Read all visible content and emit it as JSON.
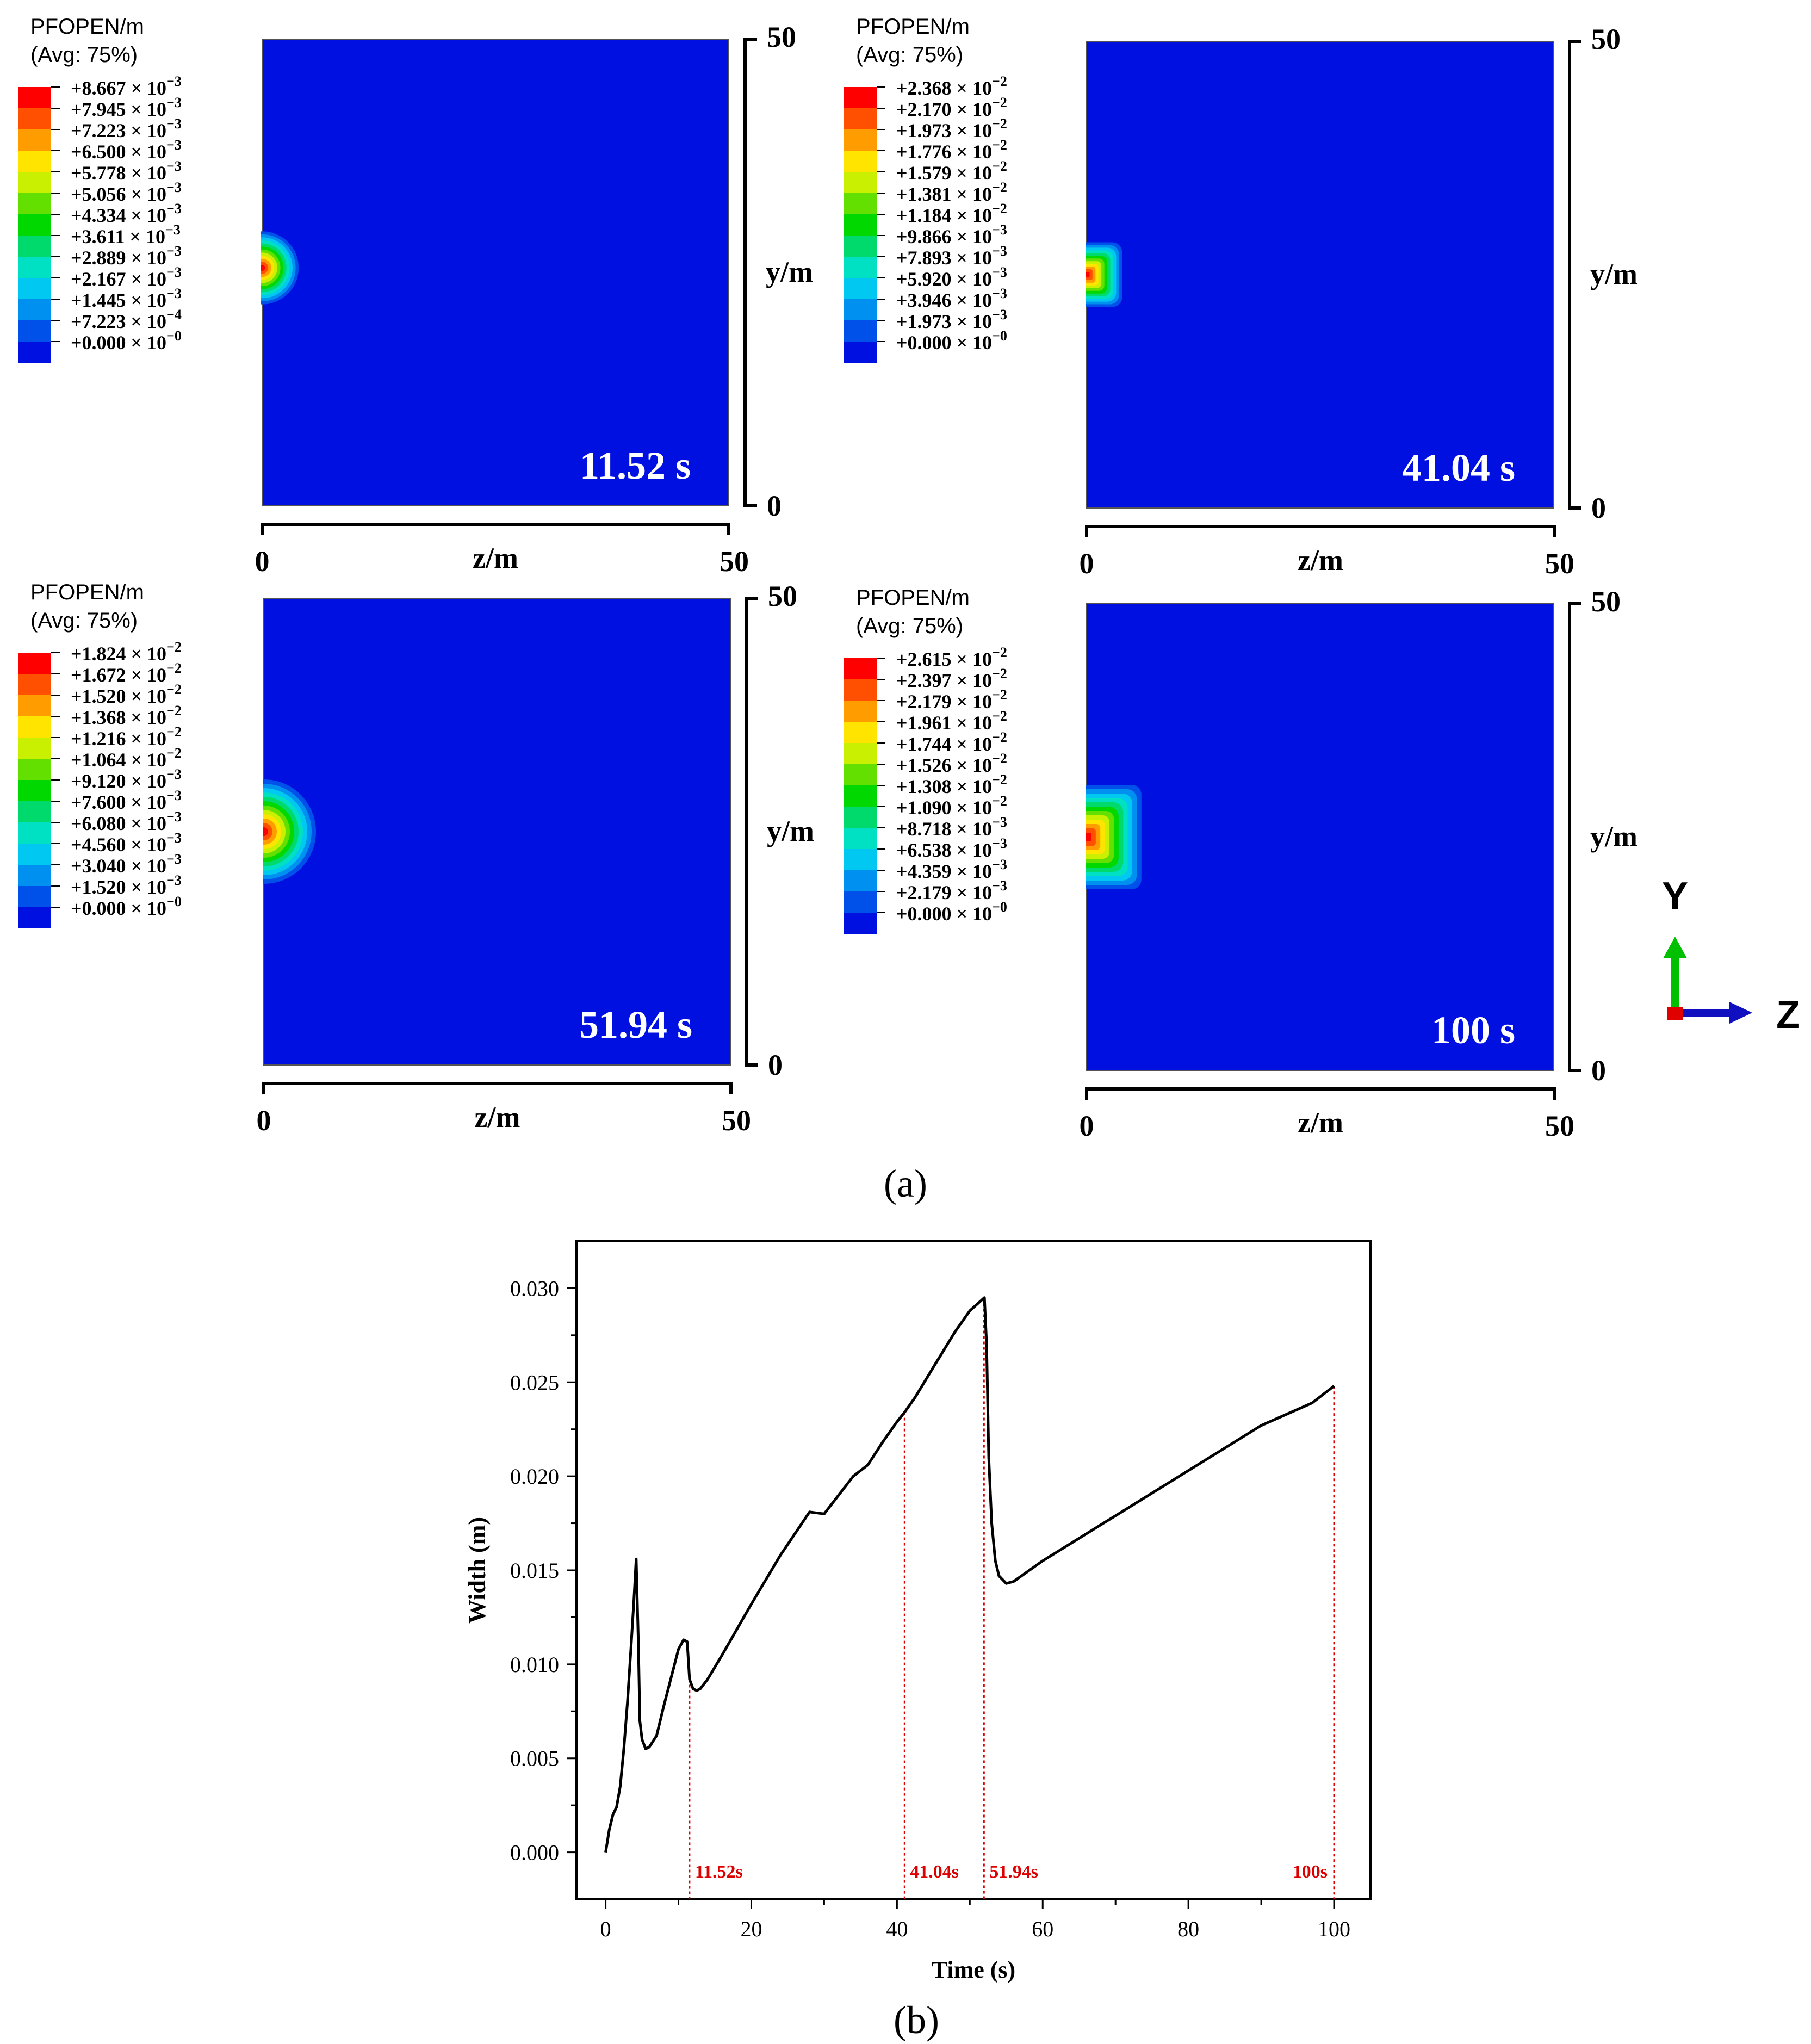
{
  "figure_a": {
    "caption": "(a)",
    "legend_title": "PFOPEN/m",
    "legend_subtitle": "(Avg: 75%)",
    "colors": [
      "#ff0000",
      "#ff4f00",
      "#ff9d00",
      "#ffe400",
      "#c9f000",
      "#64e000",
      "#00d800",
      "#00d96b",
      "#00e0c2",
      "#00c8f0",
      "#0090f0",
      "#0051ea",
      "#0010e0"
    ],
    "y_label": "y/m",
    "z_label": "z/m",
    "axis_min": "0",
    "axis_max": "50",
    "panels": [
      {
        "time_label": "11.52 s",
        "legend": [
          {
            "m": "+8.667",
            "e": "−3"
          },
          {
            "m": "+7.945",
            "e": "−3"
          },
          {
            "m": "+7.223",
            "e": "−3"
          },
          {
            "m": "+6.500",
            "e": "−3"
          },
          {
            "m": "+5.778",
            "e": "−3"
          },
          {
            "m": "+5.056",
            "e": "−3"
          },
          {
            "m": "+4.334",
            "e": "−3"
          },
          {
            "m": "+3.611",
            "e": "−3"
          },
          {
            "m": "+2.889",
            "e": "−3"
          },
          {
            "m": "+2.167",
            "e": "−3"
          },
          {
            "m": "+1.445",
            "e": "−3"
          },
          {
            "m": "+7.223",
            "e": "−4"
          },
          {
            "m": "+0.000",
            "e": "−0"
          }
        ]
      },
      {
        "time_label": "41.04 s",
        "legend": [
          {
            "m": "+2.368",
            "e": "−2"
          },
          {
            "m": "+2.170",
            "e": "−2"
          },
          {
            "m": "+1.973",
            "e": "−2"
          },
          {
            "m": "+1.776",
            "e": "−2"
          },
          {
            "m": "+1.579",
            "e": "−2"
          },
          {
            "m": "+1.381",
            "e": "−2"
          },
          {
            "m": "+1.184",
            "e": "−2"
          },
          {
            "m": "+9.866",
            "e": "−3"
          },
          {
            "m": "+7.893",
            "e": "−3"
          },
          {
            "m": "+5.920",
            "e": "−3"
          },
          {
            "m": "+3.946",
            "e": "−3"
          },
          {
            "m": "+1.973",
            "e": "−3"
          },
          {
            "m": "+0.000",
            "e": "−0"
          }
        ]
      },
      {
        "time_label": "51.94 s",
        "legend": [
          {
            "m": "+1.824",
            "e": "−2"
          },
          {
            "m": "+1.672",
            "e": "−2"
          },
          {
            "m": "+1.520",
            "e": "−2"
          },
          {
            "m": "+1.368",
            "e": "−2"
          },
          {
            "m": "+1.216",
            "e": "−2"
          },
          {
            "m": "+1.064",
            "e": "−2"
          },
          {
            "m": "+9.120",
            "e": "−3"
          },
          {
            "m": "+7.600",
            "e": "−3"
          },
          {
            "m": "+6.080",
            "e": "−3"
          },
          {
            "m": "+4.560",
            "e": "−3"
          },
          {
            "m": "+3.040",
            "e": "−3"
          },
          {
            "m": "+1.520",
            "e": "−3"
          },
          {
            "m": "+0.000",
            "e": "−0"
          }
        ]
      },
      {
        "time_label": "100 s",
        "legend": [
          {
            "m": "+2.615",
            "e": "−2"
          },
          {
            "m": "+2.397",
            "e": "−2"
          },
          {
            "m": "+2.179",
            "e": "−2"
          },
          {
            "m": "+1.961",
            "e": "−2"
          },
          {
            "m": "+1.744",
            "e": "−2"
          },
          {
            "m": "+1.526",
            "e": "−2"
          },
          {
            "m": "+1.308",
            "e": "−2"
          },
          {
            "m": "+1.090",
            "e": "−2"
          },
          {
            "m": "+8.718",
            "e": "−3"
          },
          {
            "m": "+6.538",
            "e": "−3"
          },
          {
            "m": "+4.359",
            "e": "−3"
          },
          {
            "m": "+2.179",
            "e": "−3"
          },
          {
            "m": "+0.000",
            "e": "−0"
          }
        ]
      }
    ],
    "triad": {
      "y_label": "Y",
      "z_label": "Z"
    }
  },
  "chart_data": {
    "type": "line",
    "caption": "(b)",
    "xlabel": "Time (s)",
    "ylabel": "Width (m)",
    "xlim": [
      -4,
      105
    ],
    "ylim": [
      -0.0025,
      0.0325
    ],
    "xticks": [
      0,
      20,
      40,
      60,
      80,
      100
    ],
    "xtick_labels": [
      "0",
      "20",
      "40",
      "60",
      "80",
      "100"
    ],
    "yticks": [
      0,
      0.005,
      0.01,
      0.015,
      0.02,
      0.025,
      0.03
    ],
    "ytick_labels": [
      "0.000",
      "0.005",
      "0.010",
      "0.015",
      "0.020",
      "0.025",
      "0.030"
    ],
    "series": [
      {
        "name": "Width",
        "x": [
          0,
          0.5,
          1.0,
          1.5,
          2.0,
          2.5,
          3.0,
          3.5,
          3.9,
          4.2,
          4.5,
          4.7,
          5.0,
          5.5,
          6.0,
          7.0,
          8.0,
          9.0,
          10.0,
          10.7,
          11.2,
          11.52,
          12.0,
          12.5,
          13.0,
          14.0,
          16.0,
          20.0,
          24.0,
          28.0,
          30.0,
          32.0,
          34.0,
          36.0,
          38.0,
          40.0,
          41.04,
          42.5,
          45.0,
          48.0,
          50.0,
          52.0,
          52.3,
          52.6,
          53.0,
          53.5,
          54.0,
          55.0,
          56.0,
          60.0,
          70.0,
          80.0,
          90.0,
          97.0,
          100.0
        ],
        "y": [
          0.0,
          0.0012,
          0.002,
          0.0024,
          0.0035,
          0.0055,
          0.008,
          0.011,
          0.0135,
          0.0156,
          0.011,
          0.007,
          0.006,
          0.0055,
          0.0056,
          0.0062,
          0.0078,
          0.0093,
          0.0108,
          0.0113,
          0.0112,
          0.0092,
          0.0087,
          0.0086,
          0.0087,
          0.0092,
          0.0105,
          0.0132,
          0.0158,
          0.0181,
          0.018,
          0.019,
          0.02,
          0.0206,
          0.0218,
          0.0229,
          0.0234,
          0.0242,
          0.0258,
          0.0277,
          0.0288,
          0.0295,
          0.027,
          0.021,
          0.0175,
          0.0155,
          0.0147,
          0.0143,
          0.0144,
          0.0155,
          0.0179,
          0.0203,
          0.0227,
          0.0239,
          0.0248
        ]
      }
    ],
    "markers": [
      {
        "x": 11.52,
        "label": "11.52s"
      },
      {
        "x": 41.04,
        "label": "41.04s"
      },
      {
        "x": 51.94,
        "label": "51.94s"
      },
      {
        "x": 100,
        "label": "100s"
      }
    ],
    "marker_color": "#dd0000",
    "line_color": "#000000"
  }
}
